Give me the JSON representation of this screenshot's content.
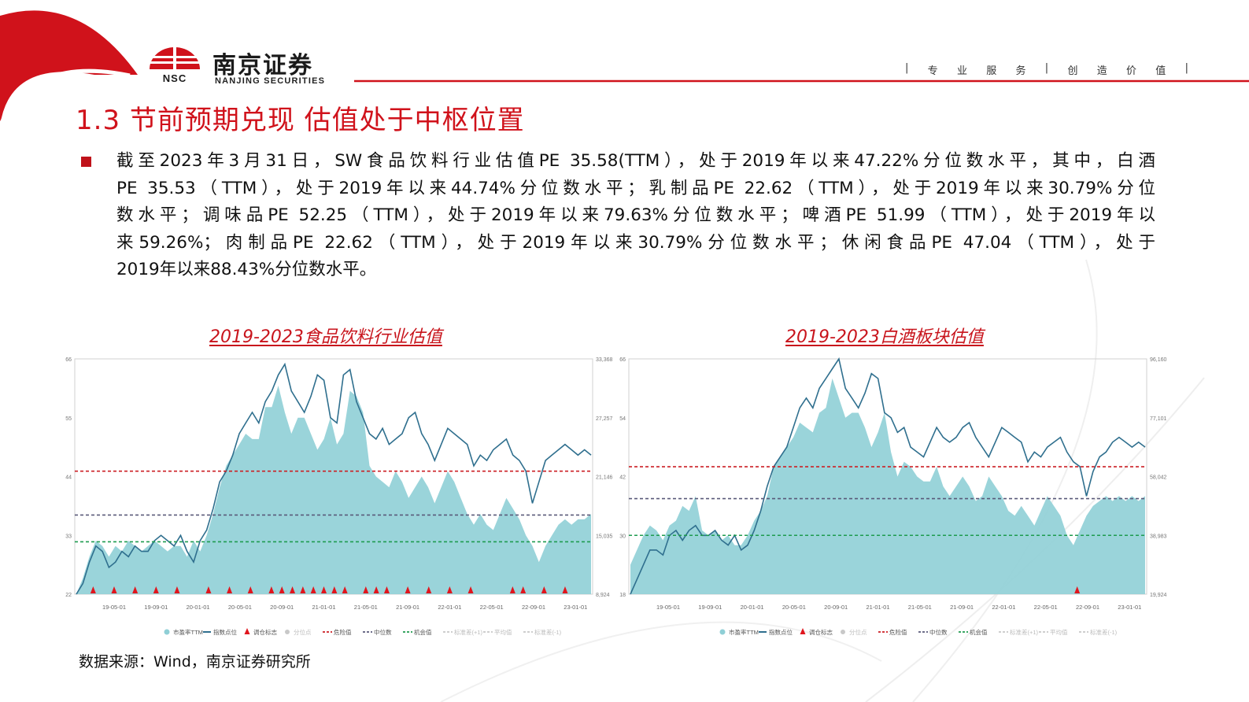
{
  "header": {
    "logo_cn": "南京证券",
    "logo_en": "NANJING SECURITIES",
    "logo_abbr": "NSC",
    "slogan_parts": [
      "|",
      "专",
      "业",
      "服",
      "务",
      "|",
      "创",
      "造",
      "价",
      "值",
      "|"
    ]
  },
  "colors": {
    "brand_red": "#d0121b",
    "area_fill": "#8fcfd6",
    "index_line": "#2f6f8e",
    "danger": "#cc1f24",
    "median": "#5a5a7a",
    "opportunity": "#1e9b4f",
    "marker": "#e0161e"
  },
  "title": "1.3 节前预期兑现 估值处于中枢位置",
  "summary_lines": [
    "截至2023年3月31日，SW食品饮料行业估值PE 35.58(TTM），处于2019年以来47.22%分位数水平，其中，白酒",
    "PE 35.53（TTM），处于2019年以来44.74%分位数水平；乳制品PE 22.62（TTM），处于2019年以来30.79%分位",
    "数水平；调味品PE 52.25（TTM），处于2019年以来79.63%分位数水平；啤酒PE 51.99（TTM），处于2019年以",
    "来59.26%；肉制品PE 22.62（TTM），处于2019年以来30.79%分位数水平；休闲食品PE 47.04（TTM），处于",
    "2019年以来88.43%分位数水平。"
  ],
  "source": "数据来源：Wind，南京证券研究所",
  "chart_data": [
    {
      "type": "area",
      "title": "2019-2023食品饮料行业估值",
      "x_ticks": [
        "19-05-01",
        "19-09-01",
        "20-01-01",
        "20-05-01",
        "20-09-01",
        "21-01-01",
        "21-05-01",
        "21-09-01",
        "22-01-01",
        "22-05-01",
        "22-09-01",
        "23-01-01"
      ],
      "y_left_ticks": [
        "66",
        "55",
        "44",
        "33",
        "22"
      ],
      "y_left_range": [
        22,
        66
      ],
      "y_right_ticks": [
        "33,368",
        "27,257",
        "21,146",
        "15,035",
        "8,924"
      ],
      "y_right_range": [
        8924,
        33368
      ],
      "reference_lines": {
        "danger": 45,
        "median": 36.8,
        "opportunity": 31.8
      },
      "series": [
        {
          "name": "市盈率TTM",
          "kind": "area",
          "values": [
            22,
            25,
            29,
            32,
            31,
            29,
            31,
            30,
            32,
            31,
            30,
            31,
            32,
            31,
            30,
            31,
            31,
            29,
            32,
            30,
            33,
            37,
            42,
            46,
            48,
            50,
            52,
            51,
            51,
            57,
            57,
            61,
            56,
            52,
            55,
            55,
            52,
            49,
            51,
            55,
            50,
            52,
            60,
            59,
            56,
            46,
            44,
            43,
            42,
            45,
            43,
            40,
            42,
            44,
            42,
            39,
            42,
            45,
            43,
            40,
            37,
            35,
            37,
            35,
            34,
            37,
            40,
            38,
            36,
            33,
            31,
            28,
            31,
            33,
            35,
            36,
            35,
            36,
            36,
            37
          ]
        },
        {
          "name": "指数点位",
          "kind": "line",
          "values": [
            22,
            24,
            28,
            31,
            30,
            27,
            28,
            30,
            29,
            31,
            30,
            30,
            32,
            33,
            32,
            31,
            33,
            30,
            28,
            32,
            34,
            38,
            43,
            45,
            48,
            52,
            54,
            56,
            54,
            58,
            60,
            63,
            65,
            60,
            58,
            56,
            59,
            63,
            62,
            55,
            54,
            63,
            64,
            58,
            55,
            52,
            51,
            53,
            50,
            51,
            52,
            55,
            56,
            52,
            50,
            47,
            50,
            53,
            52,
            51,
            50,
            46,
            48,
            47,
            49,
            50,
            51,
            48,
            47,
            45,
            39,
            43,
            47,
            48,
            49,
            50,
            49,
            48,
            49,
            48
          ]
        }
      ],
      "markers_label": "调仓标志",
      "markers": [
        "19-03",
        "19-05",
        "19-07",
        "19-09",
        "19-11",
        "20-02",
        "20-04",
        "20-06",
        "20-08",
        "20-09",
        "20-10",
        "20-11",
        "20-12",
        "21-01",
        "21-02",
        "21-03",
        "21-05",
        "21-06",
        "21-07",
        "21-09",
        "21-11",
        "22-01",
        "22-03",
        "22-07",
        "22-08",
        "22-10",
        "22-12"
      ],
      "legend": [
        "市盈率TTM",
        "指数点位",
        "调仓标志",
        "分位点",
        "危险值",
        "中位数",
        "机会值",
        "标准差(+1)",
        "平均值",
        "标准差(-1)"
      ]
    },
    {
      "type": "area",
      "title": "2019-2023白酒板块估值",
      "x_ticks": [
        "19-05-01",
        "19-09-01",
        "20-01-01",
        "20-05-01",
        "20-09-01",
        "21-01-01",
        "21-05-01",
        "21-09-01",
        "22-01-01",
        "22-05-01",
        "22-09-01",
        "23-01-01"
      ],
      "y_left_ticks": [
        "66",
        "54",
        "42",
        "30",
        "18"
      ],
      "y_left_range": [
        18,
        66
      ],
      "y_right_ticks": [
        "96,160",
        "77,101",
        "58,042",
        "38,983",
        "19,924"
      ],
      "y_right_range": [
        19924,
        96160
      ],
      "reference_lines": {
        "danger": 44,
        "median": 37.5,
        "opportunity": 30
      },
      "series": [
        {
          "name": "市盈率TTM",
          "kind": "area",
          "values": [
            24,
            27,
            30,
            32,
            31,
            29,
            32,
            33,
            36,
            35,
            38,
            31,
            30,
            31,
            29,
            30,
            28,
            28,
            30,
            33,
            35,
            38,
            44,
            46,
            48,
            50,
            53,
            52,
            51,
            55,
            56,
            62,
            58,
            54,
            55,
            55,
            52,
            48,
            51,
            55,
            47,
            42,
            45,
            44,
            42,
            41,
            41,
            44,
            40,
            38,
            40,
            42,
            40,
            37,
            38,
            42,
            40,
            38,
            35,
            34,
            36,
            34,
            32,
            35,
            38,
            36,
            34,
            30,
            28,
            31,
            34,
            36,
            37,
            38,
            37,
            38,
            37,
            38,
            37,
            38
          ]
        },
        {
          "name": "指数点位",
          "kind": "line",
          "values": [
            18,
            21,
            24,
            27,
            27,
            26,
            30,
            31,
            29,
            31,
            32,
            30,
            30,
            31,
            29,
            28,
            30,
            27,
            28,
            31,
            35,
            40,
            44,
            46,
            48,
            52,
            56,
            58,
            56,
            60,
            62,
            64,
            66,
            60,
            58,
            56,
            59,
            63,
            62,
            55,
            54,
            51,
            52,
            48,
            47,
            46,
            49,
            52,
            50,
            49,
            50,
            52,
            53,
            50,
            48,
            46,
            49,
            52,
            51,
            50,
            49,
            45,
            47,
            46,
            48,
            49,
            50,
            47,
            45,
            44,
            38,
            43,
            46,
            47,
            49,
            50,
            49,
            48,
            49,
            48
          ]
        }
      ],
      "markers_label": "调仓标志",
      "markers": [
        "22-08"
      ],
      "legend": [
        "市盈率TTM",
        "指数点位",
        "调仓标志",
        "分位点",
        "危险值",
        "中位数",
        "机会值",
        "标准差(+1)",
        "平均值",
        "标准差(-1)"
      ]
    }
  ]
}
